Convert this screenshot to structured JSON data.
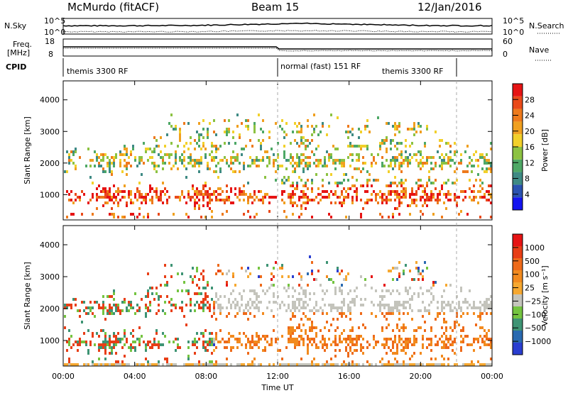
{
  "header": {
    "station": "McMurdo (fitACF)",
    "beam": "Beam 15",
    "date": "12/Jan/2016"
  },
  "top_panels": {
    "nsky": {
      "label": "N.Sky",
      "ticks": [
        "10^5",
        "10^0"
      ]
    },
    "nsearch": {
      "label": "N.Search",
      "ticks": [
        "10^5",
        "10^0"
      ]
    },
    "freq": {
      "label": "Freq.",
      "unit": "[MHz]",
      "ticks": [
        "18",
        "8"
      ]
    },
    "nave": {
      "label": "Nave",
      "ticks": [
        "60",
        "0"
      ]
    },
    "cpid": {
      "label": "CPID",
      "segments": [
        "themis 3300 RF",
        "normal (fast) 151 RF",
        "themis 3300 RF"
      ]
    }
  },
  "chart_data": [
    {
      "type": "heatmap",
      "name": "power",
      "ylabel": "Slant Range [km]",
      "xlabel": "",
      "y_ticks": [
        "1000",
        "2000",
        "3000",
        "4000"
      ],
      "ylim": [
        200,
        4600
      ],
      "xlim": [
        "00:00",
        "24:00"
      ],
      "colorbar": {
        "label": "Power [dB]",
        "ticks": [
          "4",
          "8",
          "12",
          "16",
          "20",
          "24",
          "28"
        ],
        "colors": [
          "#1414f0",
          "#2a52b0",
          "#3e8a84",
          "#4ea866",
          "#8cc242",
          "#f2d02a",
          "#f0a020",
          "#ee7a1c",
          "#ea4a1a",
          "#e61414"
        ]
      }
    },
    {
      "type": "heatmap",
      "name": "velocity",
      "ylabel": "Slant Range [km]",
      "xlabel": "Time UT",
      "y_ticks": [
        "1000",
        "2000",
        "3000",
        "4000"
      ],
      "ylim": [
        200,
        4600
      ],
      "x_ticks": [
        "00:00",
        "04:00",
        "08:00",
        "12:00",
        "16:00",
        "20:00",
        "00:00"
      ],
      "colorbar": {
        "label": "Velocity [m s⁻¹]",
        "ticks": [
          "1000",
          "500",
          "100",
          "25",
          "−25",
          "−100",
          "−500",
          "−1000"
        ],
        "colors": [
          "#2a3ed0",
          "#2a6ab0",
          "#3e9474",
          "#74c440",
          "#c4c4bc",
          "#f6a830",
          "#f28a1e",
          "#ee6a1a",
          "#e83e16",
          "#e61414"
        ]
      }
    }
  ]
}
